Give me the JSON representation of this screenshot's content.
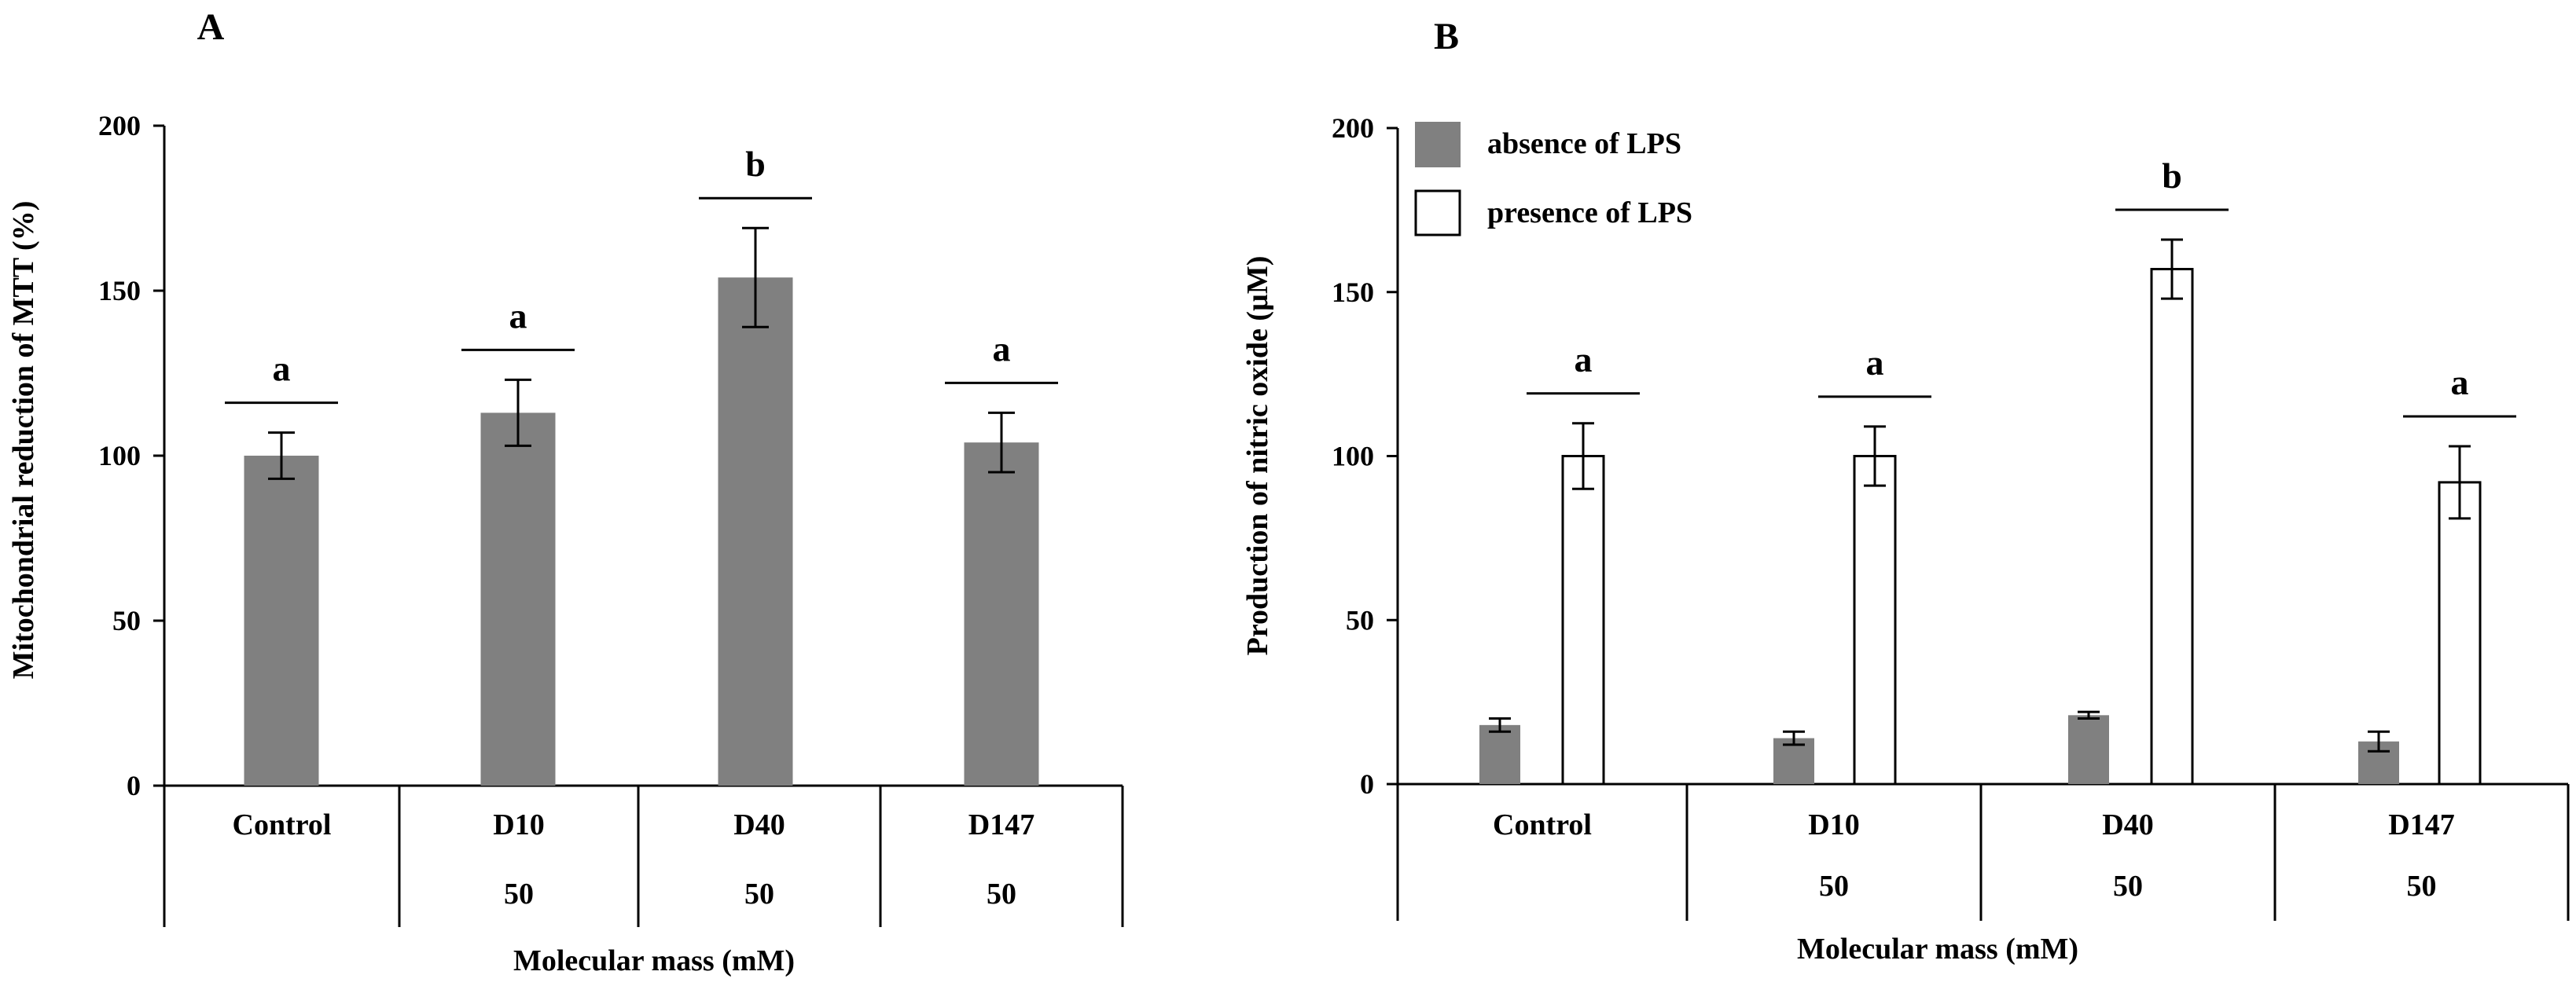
{
  "colors": {
    "absence": "#808080",
    "presence": "#ffffff",
    "axis": "#000000"
  },
  "chart_data": [
    {
      "type": "bar",
      "panel_label": "A",
      "ylabel": "Mitochondrial  reduction  of MTT  (%)",
      "xlabel": "Molecular  mass (mM)",
      "ylim": [
        0,
        200
      ],
      "yticks": [
        "0",
        "50",
        "100",
        "150",
        "200"
      ],
      "categories": [
        "Control",
        "D10",
        "D40",
        "D147"
      ],
      "subcategories": [
        "",
        "50",
        "50",
        "50"
      ],
      "series": [
        {
          "name": "MTT reduction",
          "values": [
            100,
            113,
            154,
            104
          ],
          "errors": [
            7,
            10,
            15,
            9
          ]
        }
      ],
      "significance": [
        "a",
        "a",
        "b",
        "a"
      ]
    },
    {
      "type": "bar",
      "panel_label": "B",
      "ylabel": "Production  of nitric oxide  (µM)",
      "xlabel": "Molecular  mass (mM)",
      "ylim": [
        0,
        200
      ],
      "yticks": [
        "0",
        "50",
        "100",
        "150",
        "200"
      ],
      "categories": [
        "Control",
        "D10",
        "D40",
        "D147"
      ],
      "subcategories": [
        "",
        "50",
        "50",
        "50"
      ],
      "legend": [
        "absence of LPS",
        "presence of LPS"
      ],
      "series": [
        {
          "name": "absence of LPS",
          "values": [
            18,
            14,
            21,
            13
          ],
          "errors": [
            2,
            2,
            1,
            3
          ]
        },
        {
          "name": "presence of LPS",
          "values": [
            100,
            100,
            157,
            92
          ],
          "errors": [
            10,
            9,
            9,
            11
          ]
        }
      ],
      "significance": [
        "a",
        "a",
        "b",
        "a"
      ]
    }
  ]
}
